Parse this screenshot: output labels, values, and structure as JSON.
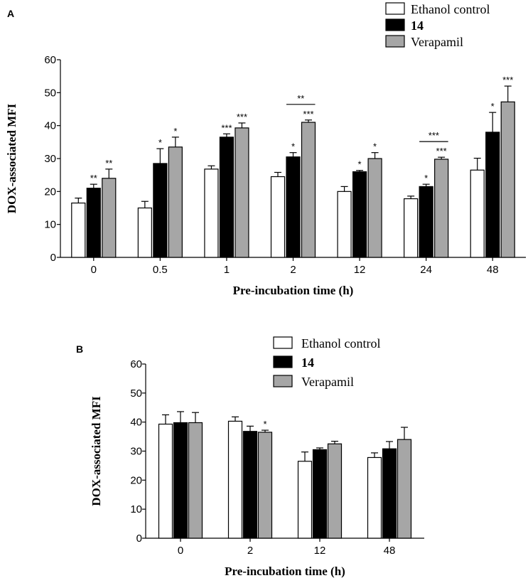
{
  "colors": {
    "ethanol": "#ffffff",
    "compound14": "#000000",
    "verapamil": "#a6a6a6"
  },
  "chart_data": [
    {
      "type": "bar",
      "panel_label": "A",
      "xlabel": "Pre-incubation time (h)",
      "ylabel": "DOX-associated MFI",
      "ylim": [
        0,
        60
      ],
      "yticks": [
        "0",
        "10",
        "20",
        "30",
        "40",
        "50",
        "60"
      ],
      "categories": [
        "0",
        "0.5",
        "1",
        "2",
        "12",
        "24",
        "48"
      ],
      "series": [
        {
          "name": "Ethanol control",
          "values": [
            16.5,
            15,
            26.8,
            24.5,
            20,
            17.8,
            26.5
          ],
          "errors": [
            1.5,
            2,
            1.0,
            1.3,
            1.5,
            0.8,
            3.6
          ],
          "sig": [
            "",
            "",
            "",
            "",
            "",
            "",
            ""
          ]
        },
        {
          "name": "14",
          "values": [
            21,
            28.5,
            36.5,
            30.5,
            26,
            21.5,
            38
          ],
          "errors": [
            1.2,
            4.5,
            1.0,
            1.3,
            0.4,
            0.7,
            6.0
          ],
          "sig": [
            "**",
            "*",
            "***",
            "*",
            "*",
            "*",
            "*"
          ]
        },
        {
          "name": "Verapamil",
          "values": [
            24,
            33.5,
            39.3,
            41,
            30,
            29.8,
            47.2
          ],
          "errors": [
            2.8,
            3.0,
            1.5,
            0.7,
            1.8,
            0.6,
            4.8
          ],
          "sig": [
            "**",
            "*",
            "***",
            "***",
            "*",
            "***",
            "***"
          ]
        }
      ],
      "brackets": [
        {
          "category": "2",
          "from": "14",
          "to": "Verapamil",
          "label": "**"
        },
        {
          "category": "24",
          "from": "14",
          "to": "Verapamil",
          "label": "***"
        }
      ],
      "legend": [
        "Ethanol control",
        "14",
        "Verapamil"
      ],
      "legend_position": "top-right"
    },
    {
      "type": "bar",
      "panel_label": "B",
      "xlabel": "Pre-incubation time (h)",
      "ylabel": "DOX-associated MFI",
      "ylim": [
        0,
        60
      ],
      "yticks": [
        "0",
        "10",
        "20",
        "30",
        "40",
        "50",
        "60"
      ],
      "categories": [
        "0",
        "2",
        "12",
        "48"
      ],
      "series": [
        {
          "name": "Ethanol control",
          "values": [
            39.3,
            40.3,
            26.5,
            27.8
          ],
          "errors": [
            3.2,
            1.5,
            3.2,
            1.6
          ],
          "sig": [
            "",
            "",
            "",
            ""
          ]
        },
        {
          "name": "14",
          "values": [
            39.8,
            36.8,
            30.5,
            30.8
          ],
          "errors": [
            3.8,
            1.8,
            0.6,
            2.5
          ],
          "sig": [
            "",
            "",
            "",
            ""
          ]
        },
        {
          "name": "Verapamil",
          "values": [
            39.8,
            36.5,
            32.5,
            34
          ],
          "errors": [
            3.5,
            0.7,
            0.9,
            4.2
          ],
          "sig": [
            "",
            "*",
            "",
            ""
          ]
        }
      ],
      "brackets": [],
      "legend": [
        "Ethanol control",
        "14",
        "Verapamil"
      ],
      "legend_position": "top-right"
    }
  ]
}
